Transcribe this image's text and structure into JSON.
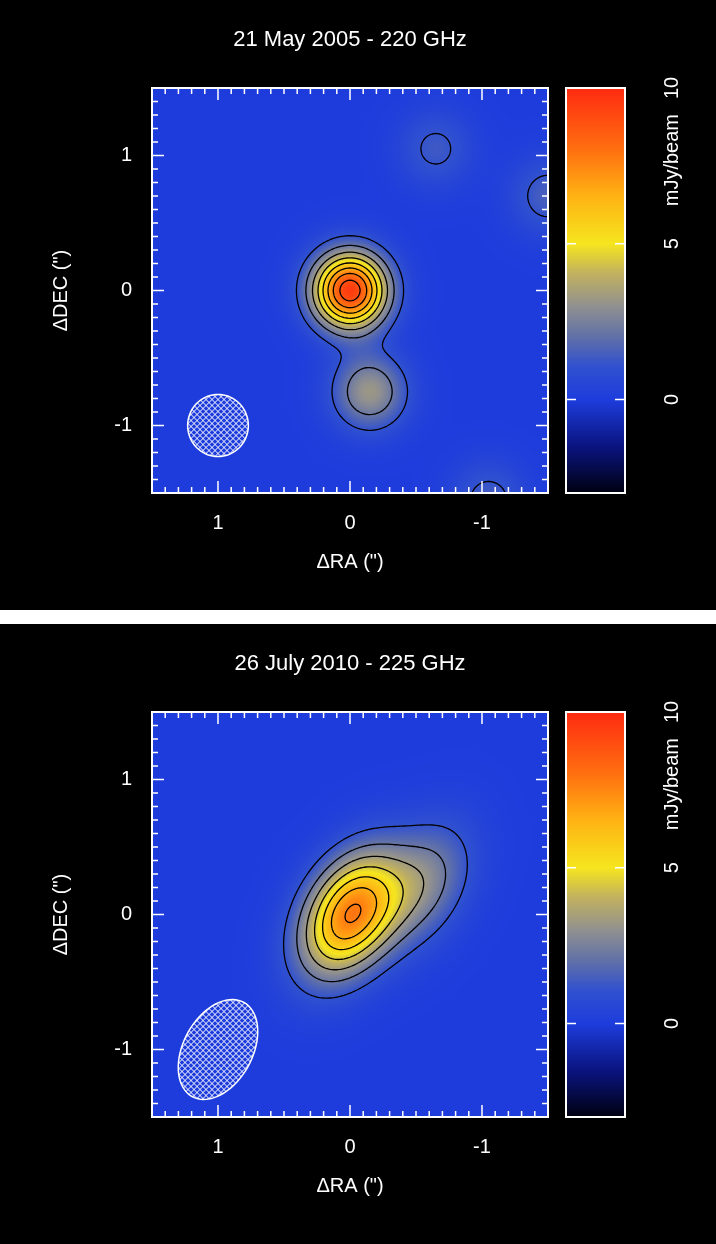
{
  "chart_data": [
    {
      "type": "heatmap",
      "title": "21 May 2005 - 220 GHz",
      "x_label": "ΔRA (\")",
      "y_label": "ΔDEC (\")",
      "xlim": [
        1.5,
        -1.5
      ],
      "xticks": [
        1,
        0,
        -1
      ],
      "ylim": [
        -1.5,
        1.5
      ],
      "yticks": [
        -1,
        0,
        1
      ],
      "colorbar": {
        "label": "mJy/beam",
        "range": [
          -3,
          10
        ],
        "ticks": [
          0,
          5,
          10
        ]
      },
      "contour_levels": [
        1.1,
        2.2,
        3.3,
        4.4,
        5.5,
        6.6,
        7.7,
        8.8
      ],
      "beam": {
        "x": 1,
        "y": -1,
        "major": 0.46,
        "minor": 0.46,
        "pa": 0
      },
      "sources": [
        {
          "x": 0,
          "y": 0,
          "peak": 9.5
        },
        {
          "x": -0.15,
          "y": -0.75,
          "peak": 3.2
        },
        {
          "x": -0.65,
          "y": 1.05,
          "peak": 1.3
        },
        {
          "x": -1.5,
          "y": 0.7,
          "peak": 1.5
        },
        {
          "x": -1.05,
          "y": -1.55,
          "peak": 1.4
        }
      ]
    },
    {
      "type": "heatmap",
      "title": "26 July 2010 - 225 GHz",
      "x_label": "ΔRA (\")",
      "y_label": "ΔDEC (\")",
      "xlim": [
        1.5,
        -1.5
      ],
      "xticks": [
        1,
        0,
        -1
      ],
      "ylim": [
        -1.5,
        1.5
      ],
      "yticks": [
        -1,
        0,
        1
      ],
      "colorbar": {
        "label": "mJy/beam",
        "range": [
          -3,
          10
        ],
        "ticks": [
          0,
          5,
          10
        ]
      },
      "contour_levels": [
        1.1,
        2.2,
        3.3,
        4.4,
        5.5,
        6.6,
        7.7,
        8.8
      ],
      "beam": {
        "x": 1,
        "y": -1,
        "major": 0.8,
        "minor": 0.52,
        "pa": -30
      },
      "sources": [
        {
          "x": 0,
          "y": 0,
          "peak": 7.6
        },
        {
          "x": -0.55,
          "y": 0.22,
          "peak": 2.6
        }
      ]
    }
  ]
}
